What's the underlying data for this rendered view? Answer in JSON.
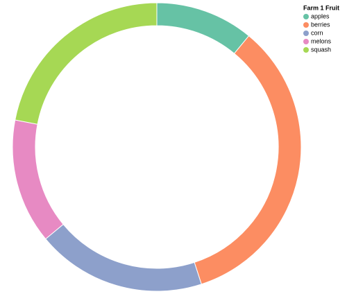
{
  "chart_data": {
    "type": "donut",
    "legend_title": "Farm 1 Fruit",
    "categories": [
      "apples",
      "berries",
      "corn",
      "melons",
      "squash"
    ],
    "values": [
      11,
      34,
      19,
      14,
      22
    ],
    "colors": [
      "#66c2a5",
      "#fc8d62",
      "#8da0cb",
      "#e78ac3",
      "#a6d854"
    ],
    "legend": "top-right"
  }
}
